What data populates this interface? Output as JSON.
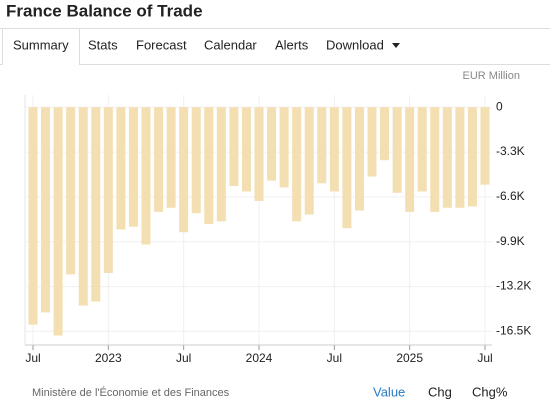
{
  "tabs": [
    "Summary",
    "Stats",
    "Forecast",
    "Calendar",
    "Alerts",
    "Download"
  ],
  "chart_data": {
    "type": "bar",
    "title": "France Balance of Trade",
    "y_axis_label": "EUR Million",
    "categories": [
      "Jul",
      null,
      null,
      null,
      null,
      null,
      "2023",
      null,
      null,
      null,
      null,
      null,
      "Jul",
      null,
      null,
      null,
      null,
      null,
      "2024",
      null,
      null,
      null,
      null,
      null,
      "Jul",
      null,
      null,
      null,
      null,
      null,
      "2025",
      null,
      null,
      null,
      null,
      null,
      "Jul"
    ],
    "values": [
      -16000,
      -15100,
      -16800,
      -12300,
      -14600,
      -14300,
      -12200,
      -9000,
      -8800,
      -10100,
      -7700,
      -7400,
      -9200,
      -7800,
      -8600,
      -8400,
      -5800,
      -6200,
      -6900,
      -5400,
      -5900,
      -8400,
      -7900,
      -5600,
      -6200,
      -8900,
      -7600,
      -5100,
      -3900,
      -6300,
      -7700,
      -6200,
      -7700,
      -7400,
      -7400,
      -7300,
      -5700
    ],
    "color": "#f3dfb2",
    "ylim": [
      -17500,
      900
    ],
    "yticks": [
      0,
      {
        "value": -3300,
        "label": "-3.3K"
      },
      {
        "value": -6600,
        "label": "-6.6K"
      },
      {
        "value": -9900,
        "label": "-9.9K"
      },
      {
        "value": -13200,
        "label": "-13.2K"
      },
      {
        "value": -16500,
        "label": "-16.5K"
      }
    ],
    "grid": true
  },
  "footer": {
    "source": "Ministère de l'Économie et des Finances",
    "buttons": [
      "Value",
      "Chg",
      "Chg%"
    ]
  }
}
